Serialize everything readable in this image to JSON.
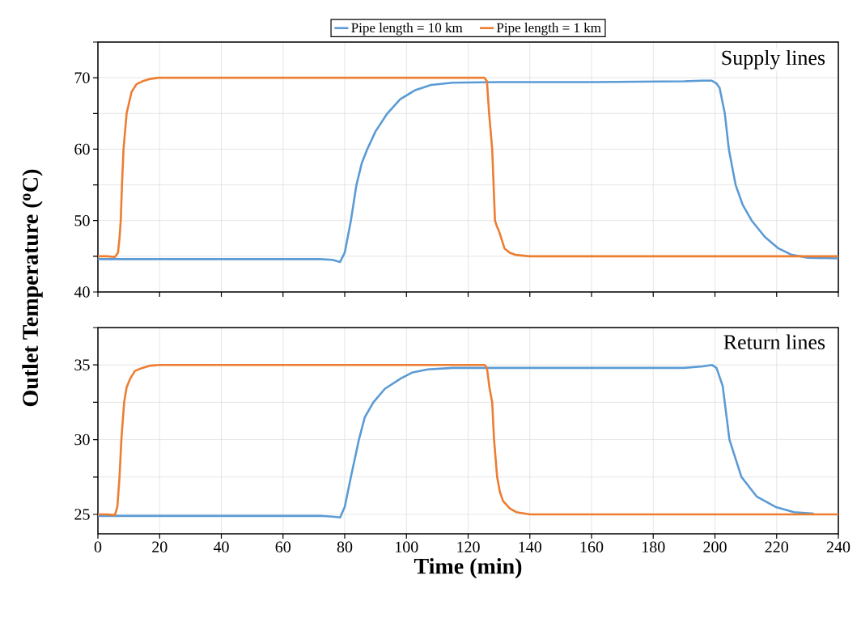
{
  "chart_data": [
    {
      "type": "line",
      "ylabel": "Outlet Temperature ($^{o}$C)",
      "annotations": [
        "Supply lines"
      ],
      "xlim": [
        0,
        240
      ],
      "xticks": [
        0,
        20,
        40,
        60,
        80,
        100,
        120,
        140,
        160,
        180,
        200,
        220,
        240
      ],
      "ylim": [
        40,
        75
      ],
      "yticks": [
        40,
        {
          "value": 45,
          "label": null
        },
        50,
        {
          "value": 55,
          "label": null
        },
        60,
        {
          "value": 65,
          "label": null
        },
        70,
        {
          "value": 75,
          "label": null
        }
      ],
      "grid": true,
      "legend": "top",
      "tick_labels": "y",
      "series": [
        {
          "name": "Pipe length = 10 km",
          "color": "#5b9bd5",
          "x": [
            0,
            20,
            40,
            60,
            72,
            76,
            78.5,
            80,
            82,
            83.8,
            85.5,
            87.3,
            90,
            93.8,
            98,
            103,
            108,
            115,
            130,
            160,
            190,
            196,
            198.9,
            200.5,
            201.5,
            203.2,
            204.5,
            206.7,
            209,
            211.9,
            216.2,
            220.6,
            224.9,
            230.1,
            240
          ],
          "values": [
            44.6,
            44.6,
            44.6,
            44.6,
            44.6,
            44.5,
            44.2,
            45.5,
            50,
            55,
            58,
            60,
            62.5,
            65,
            67,
            68.3,
            69,
            69.3,
            69.4,
            69.4,
            69.5,
            69.6,
            69.6,
            69.2,
            68.6,
            65,
            60,
            55,
            52.2,
            50,
            47.7,
            46.1,
            45.2,
            44.8,
            44.7
          ]
        },
        {
          "name": "Pipe length = 1 km",
          "color": "#ed7d31",
          "x": [
            0,
            3,
            5.5,
            6.5,
            7,
            7.4,
            7.8,
            8.3,
            9.3,
            10.9,
            12.5,
            14.4,
            16.5,
            19.6,
            40,
            80,
            120,
            125.3,
            126.1,
            126.8,
            127.8,
            128.7,
            129.3,
            130.1,
            131.8,
            133.5,
            135.3,
            140,
            180,
            240
          ],
          "values": [
            45,
            45,
            44.9,
            45.5,
            47.5,
            50,
            55,
            60,
            65,
            68,
            69.1,
            69.5,
            69.8,
            70,
            70,
            70,
            70,
            70,
            69.5,
            65,
            60,
            50,
            49.2,
            48.4,
            46.1,
            45.5,
            45.2,
            45,
            45,
            45
          ]
        }
      ]
    },
    {
      "type": "line",
      "xlabel": "Time (min)",
      "annotations": [
        "Return lines"
      ],
      "xlim": [
        0,
        240
      ],
      "xticks": [
        0,
        20,
        40,
        60,
        80,
        100,
        120,
        140,
        160,
        180,
        200,
        220,
        240
      ],
      "ylim": [
        23.7,
        37.5
      ],
      "yticks": [
        25,
        {
          "value": 27.5,
          "label": null
        },
        30,
        {
          "value": 32.5,
          "label": null
        },
        35,
        {
          "value": 37.5,
          "label": null
        }
      ],
      "grid": true,
      "series": [
        {
          "color": "#5b9bd5",
          "x": [
            0,
            20,
            40,
            60,
            72,
            76,
            78.5,
            80,
            82,
            84.6,
            86.5,
            89.3,
            93,
            98.2,
            102,
            106.9,
            115,
            130,
            160,
            190,
            196,
            199,
            200.5,
            202.5,
            204.7,
            208.6,
            213.5,
            219.6,
            225.6,
            232
          ],
          "values": [
            24.9,
            24.9,
            24.9,
            24.9,
            24.9,
            24.85,
            24.8,
            25.5,
            27.5,
            30,
            31.5,
            32.5,
            33.4,
            34.1,
            34.5,
            34.7,
            34.8,
            34.8,
            34.8,
            34.8,
            34.9,
            35,
            34.8,
            33.6,
            30,
            27.5,
            26.2,
            25.5,
            25.15,
            25.05
          ]
        },
        {
          "color": "#ed7d31",
          "x": [
            0,
            3,
            5.5,
            6.3,
            7,
            7.6,
            8.5,
            9.3,
            10.5,
            12,
            14.4,
            17,
            20,
            60,
            100,
            125.3,
            126.1,
            126.9,
            127.8,
            128.4,
            129.4,
            130.3,
            131.3,
            133.5,
            135.6,
            140,
            180,
            240
          ],
          "values": [
            25,
            25,
            24.95,
            25.5,
            27.5,
            30,
            32.5,
            33.5,
            34.1,
            34.6,
            34.8,
            34.95,
            35,
            35,
            35,
            35,
            34.8,
            33.5,
            32.5,
            30,
            27.5,
            26.5,
            25.9,
            25.4,
            25.15,
            25,
            25,
            25
          ]
        }
      ]
    }
  ]
}
